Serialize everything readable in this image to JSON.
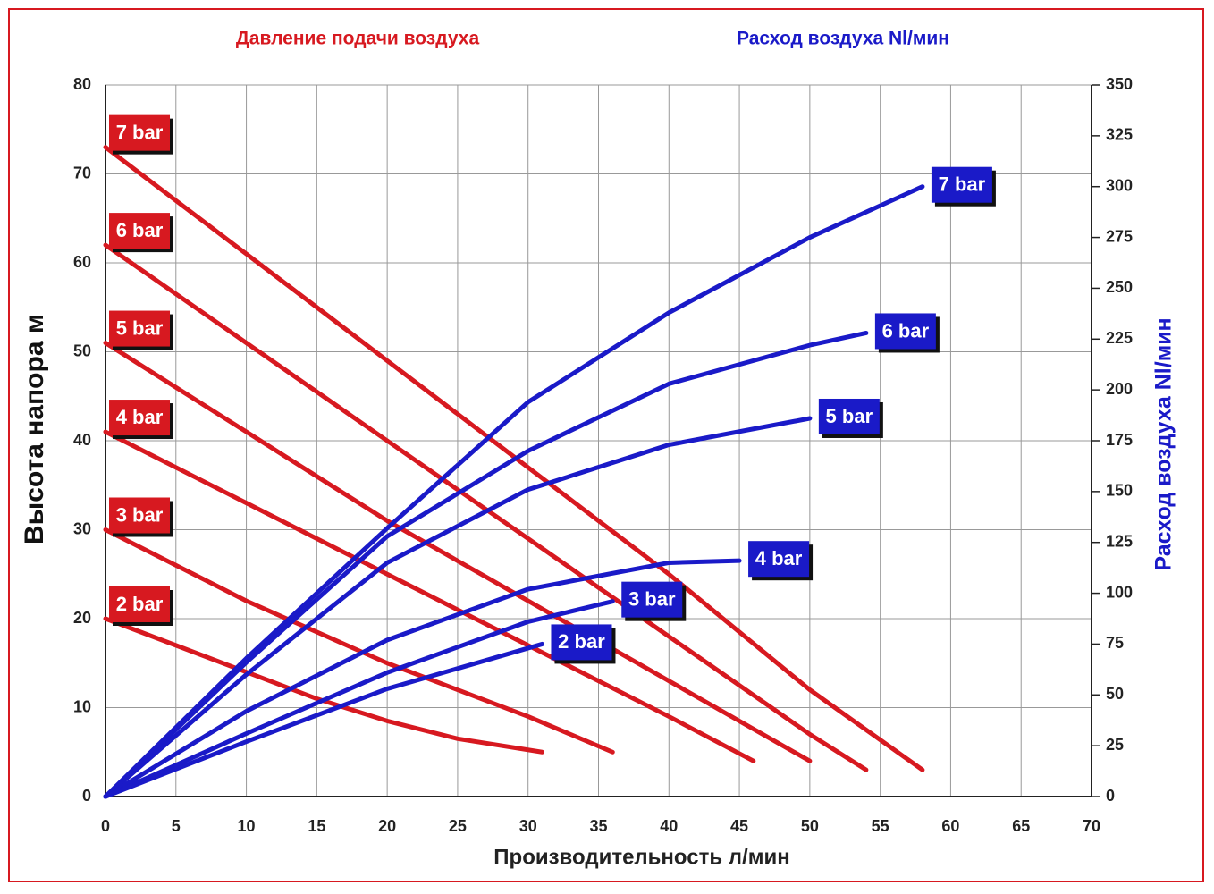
{
  "chart_data": {
    "type": "line",
    "title_left": "Давление подачи воздуха",
    "title_right": "Расход воздуха Nl/мин",
    "x_label": "Производительность л/мин",
    "y_label": "Высота напора м",
    "y2_label": "Расход воздуха Nl/мин",
    "xlim": [
      0,
      70
    ],
    "xticks": [
      0,
      5,
      10,
      15,
      20,
      25,
      30,
      35,
      40,
      45,
      50,
      55,
      60,
      65,
      70
    ],
    "ylim": [
      0,
      80
    ],
    "yticks": [
      0,
      10,
      20,
      30,
      40,
      50,
      60,
      70,
      80
    ],
    "y2lim": [
      0,
      350
    ],
    "y2ticks": [
      0,
      25,
      50,
      75,
      100,
      125,
      150,
      175,
      200,
      225,
      250,
      275,
      300,
      325,
      350
    ],
    "grid": true,
    "series": [
      {
        "name": "7 bar",
        "color": "#d71920",
        "x": [
          0,
          10,
          20,
          30,
          40,
          50,
          58
        ],
        "values": [
          73,
          61,
          49,
          37,
          25,
          12,
          3
        ]
      },
      {
        "name": "6 bar",
        "color": "#d71920",
        "x": [
          0,
          10,
          20,
          30,
          40,
          50,
          54
        ],
        "values": [
          62,
          51,
          40,
          29,
          18,
          7,
          3
        ]
      },
      {
        "name": "5 bar",
        "color": "#d71920",
        "x": [
          0,
          10,
          20,
          30,
          40,
          50
        ],
        "values": [
          51,
          41,
          31,
          22,
          13,
          4
        ]
      },
      {
        "name": "4 bar",
        "color": "#d71920",
        "x": [
          0,
          10,
          20,
          30,
          40,
          46
        ],
        "values": [
          41,
          33,
          25,
          17,
          9,
          4
        ]
      },
      {
        "name": "3 bar",
        "color": "#d71920",
        "x": [
          0,
          10,
          20,
          30,
          36
        ],
        "values": [
          30,
          22,
          15,
          9,
          5
        ]
      },
      {
        "name": "2 bar",
        "color": "#d71920",
        "x": [
          0,
          5,
          10,
          15,
          20,
          25,
          31
        ],
        "values": [
          20,
          17,
          14,
          11,
          8.5,
          6.5,
          5
        ]
      },
      {
        "name": "7 bar",
        "color": "#1a1ac8",
        "axis": "y2",
        "x": [
          0,
          10,
          20,
          30,
          40,
          50,
          58
        ],
        "values": [
          0,
          68,
          132,
          194,
          238,
          275,
          300
        ]
      },
      {
        "name": "6 bar",
        "color": "#1a1ac8",
        "axis": "y2",
        "x": [
          0,
          10,
          20,
          30,
          40,
          50,
          54
        ],
        "values": [
          0,
          66,
          128,
          170,
          203,
          222,
          228
        ]
      },
      {
        "name": "5 bar",
        "color": "#1a1ac8",
        "axis": "y2",
        "x": [
          0,
          10,
          20,
          30,
          40,
          50
        ],
        "values": [
          0,
          60,
          115,
          151,
          173,
          186
        ]
      },
      {
        "name": "4 bar",
        "color": "#1a1ac8",
        "axis": "y2",
        "x": [
          0,
          10,
          20,
          30,
          40,
          45
        ],
        "values": [
          0,
          42,
          77,
          102,
          115,
          116
        ]
      },
      {
        "name": "3 bar",
        "color": "#1a1ac8",
        "axis": "y2",
        "x": [
          0,
          10,
          20,
          30,
          36
        ],
        "values": [
          0,
          31,
          61,
          86,
          96
        ]
      },
      {
        "name": "2 bar",
        "color": "#1a1ac8",
        "axis": "y2",
        "x": [
          0,
          10,
          20,
          31
        ],
        "values": [
          0,
          27,
          53,
          75
        ]
      }
    ]
  }
}
